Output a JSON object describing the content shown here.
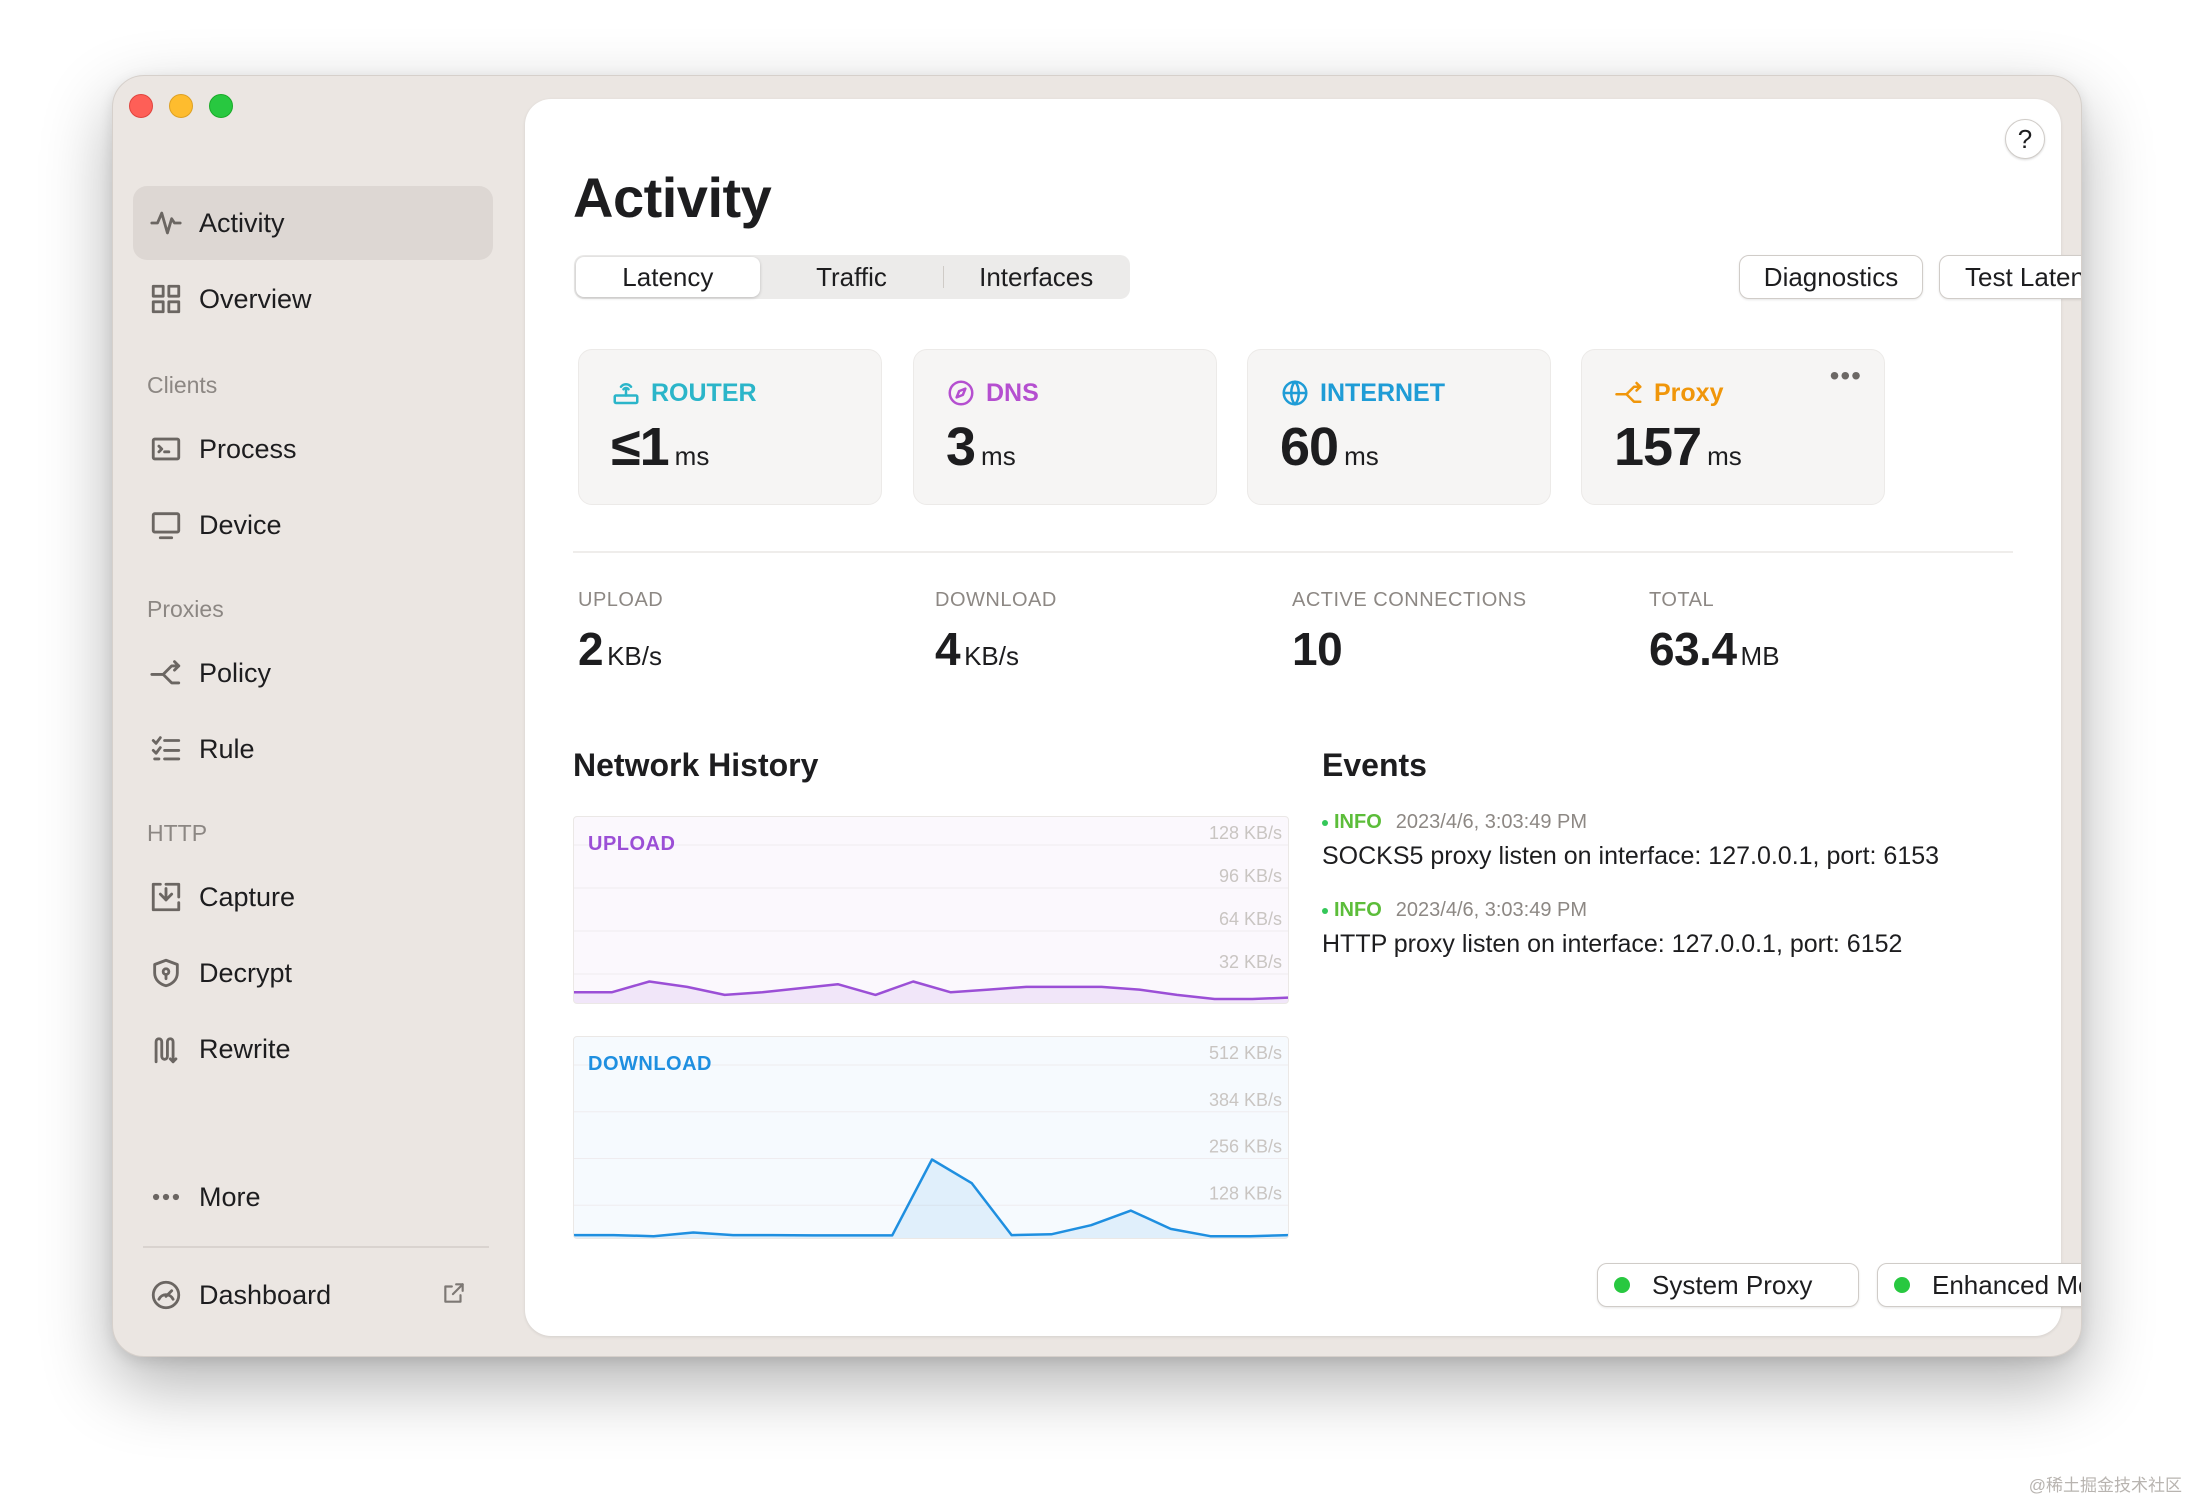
{
  "sidebar": {
    "items": [
      {
        "label": "Activity",
        "icon": "pulse-icon"
      },
      {
        "label": "Overview",
        "icon": "grid-icon"
      },
      {
        "label": "Process",
        "icon": "terminal-icon"
      },
      {
        "label": "Device",
        "icon": "monitor-icon"
      },
      {
        "label": "Policy",
        "icon": "branch-icon"
      },
      {
        "label": "Rule",
        "icon": "checklist-icon"
      },
      {
        "label": "Capture",
        "icon": "capture-icon"
      },
      {
        "label": "Decrypt",
        "icon": "shield-icon"
      },
      {
        "label": "Rewrite",
        "icon": "rewrite-icon"
      },
      {
        "label": "More",
        "icon": "ellipsis-icon"
      },
      {
        "label": "Dashboard",
        "icon": "gauge-icon"
      }
    ],
    "sections": {
      "clients": "Clients",
      "proxies": "Proxies",
      "http": "HTTP"
    }
  },
  "main": {
    "help_label": "?",
    "title": "Activity",
    "tabs": [
      "Latency",
      "Traffic",
      "Interfaces"
    ],
    "buttons": {
      "diagnostics": "Diagnostics",
      "test_latency": "Test Latency"
    },
    "latency_cards": [
      {
        "label": "ROUTER",
        "value": "≤1",
        "unit": "ms",
        "color": "#2bb5c9",
        "icon": "router-icon"
      },
      {
        "label": "DNS",
        "value": "3",
        "unit": "ms",
        "color": "#b54fd0",
        "icon": "compass-icon"
      },
      {
        "label": "INTERNET",
        "value": "60",
        "unit": "ms",
        "color": "#1f9cd6",
        "icon": "globe-icon"
      },
      {
        "label": "Proxy",
        "value": "157",
        "unit": "ms",
        "color": "#f0960a",
        "icon": "proxy-branch-icon",
        "more": "•••"
      }
    ],
    "stats": [
      {
        "label": "UPLOAD",
        "value": "2",
        "unit": "KB/s"
      },
      {
        "label": "DOWNLOAD",
        "value": "4",
        "unit": "KB/s"
      },
      {
        "label": "ACTIVE CONNECTIONS",
        "value": "10",
        "unit": ""
      },
      {
        "label": "TOTAL",
        "value": "63.4",
        "unit": "MB"
      }
    ],
    "network_history_title": "Network History",
    "events_title": "Events",
    "events": [
      {
        "level": "INFO",
        "time": "2023/4/6, 3:03:49 PM",
        "message": "SOCKS5 proxy listen on interface: 127.0.0.1, port: 6153"
      },
      {
        "level": "INFO",
        "time": "2023/4/6, 3:03:49 PM",
        "message": "HTTP proxy listen on interface: 127.0.0.1, port: 6152"
      }
    ],
    "status": {
      "system_proxy": "System Proxy",
      "enhanced_mode": "Enhanced Mode",
      "dot_color": "#28c840"
    }
  },
  "chart_data": [
    {
      "type": "area",
      "title": "UPLOAD",
      "unit": "KB/s",
      "ylim": [
        0,
        128
      ],
      "yticks": [
        "128 KB/s",
        "96 KB/s",
        "64 KB/s",
        "32 KB/s"
      ],
      "color": "#9b4fd6",
      "values": [
        8,
        8,
        16,
        12,
        6,
        8,
        11,
        14,
        6,
        16,
        8,
        10,
        12,
        12,
        12,
        10,
        6,
        3,
        3,
        4
      ]
    },
    {
      "type": "area",
      "title": "DOWNLOAD",
      "unit": "KB/s",
      "ylim": [
        0,
        512
      ],
      "yticks": [
        "512 KB/s",
        "384 KB/s",
        "256 KB/s",
        "128 KB/s"
      ],
      "color": "#1f8fe0",
      "values": [
        8,
        8,
        5,
        15,
        8,
        8,
        7,
        7,
        7,
        215,
        150,
        8,
        10,
        35,
        75,
        25,
        5,
        5,
        8
      ]
    }
  ],
  "watermark": "@稀土掘金技术社区"
}
